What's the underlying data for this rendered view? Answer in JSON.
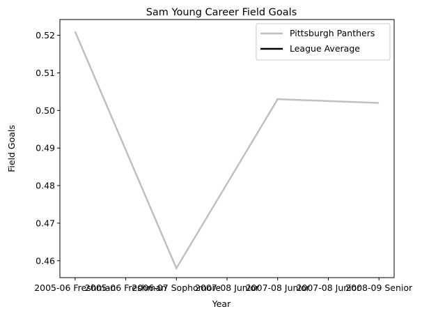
{
  "chart_data": {
    "type": "line",
    "title": "Sam Young  Career Field Goals",
    "xlabel": "Year",
    "ylabel": "Field Goals",
    "categories": [
      "2005-06 Freshman",
      "2005-06 Freshman",
      "2006-07 Sophomore",
      "2007-08 Junior",
      "2007-08 Junior",
      "2007-08 Junior",
      "2008-09 Senior"
    ],
    "x_positions": [
      0,
      0.5,
      1,
      1.5,
      2,
      2.5,
      3
    ],
    "series": [
      {
        "name": "Pittsburgh Panthers",
        "color": "#bfbfbf",
        "x": [
          0,
          1,
          2,
          3
        ],
        "values": [
          0.521,
          0.458,
          0.503,
          0.502
        ]
      },
      {
        "name": "League Average",
        "color": "#000000",
        "x": [],
        "values": []
      }
    ],
    "yticks": [
      "0.46",
      "0.47",
      "0.48",
      "0.49",
      "0.50",
      "0.51",
      "0.52"
    ],
    "ytick_values": [
      0.46,
      0.47,
      0.48,
      0.49,
      0.5,
      0.51,
      0.52
    ],
    "ylim": [
      0.4555,
      0.5242
    ],
    "xlim": [
      -0.15,
      3.15
    ],
    "grid": false,
    "legend_position": "top-right"
  }
}
